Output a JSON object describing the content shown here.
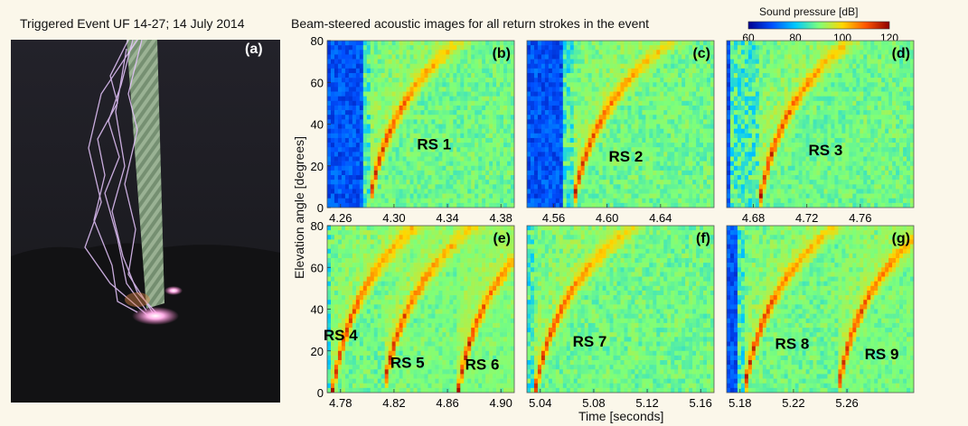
{
  "photo_title": "Triggered Event UF 14-27; 14 July 2014",
  "panels_title": "Beam-steered acoustic images for all return strokes in the event",
  "photo_label": "(a)",
  "colorbar": {
    "title": "Sound pressure [dB]",
    "min": 60,
    "max": 120,
    "ticks": [
      "60",
      "80",
      "100",
      "120"
    ],
    "colors": [
      "#00008f",
      "#0050ff",
      "#00c8ff",
      "#7dff7a",
      "#ffd700",
      "#ff5500",
      "#8f0000"
    ]
  },
  "ylabel": "Elevation angle [degrees]",
  "xlabel": "Time [seconds]",
  "chart_data": [
    {
      "type": "heatmap",
      "label": "(b)",
      "xlim": [
        4.25,
        4.39
      ],
      "ylim": [
        0,
        80
      ],
      "xticks": [
        "4.26",
        "4.30",
        "4.34",
        "4.38"
      ],
      "yticks": [
        "0",
        "20",
        "40",
        "60",
        "80"
      ],
      "annotations": [
        {
          "text": "RS 1",
          "x": 4.33,
          "y": 28
        }
      ],
      "strokes": [
        {
          "t0": 4.281,
          "rate": 0.011
        }
      ],
      "quiet_before": 4.276
    },
    {
      "type": "heatmap",
      "label": "(c)",
      "xlim": [
        4.54,
        4.68
      ],
      "ylim": [
        0,
        80
      ],
      "xticks": [
        "4.56",
        "4.60",
        "4.64"
      ],
      "yticks": [
        "0",
        "20",
        "40",
        "60",
        "80"
      ],
      "annotations": [
        {
          "text": "RS 2",
          "x": 4.614,
          "y": 22
        }
      ],
      "strokes": [
        {
          "t0": 4.574,
          "rate": 0.012
        }
      ],
      "quiet_before": 4.568
    },
    {
      "type": "heatmap",
      "label": "(d)",
      "xlim": [
        4.66,
        4.8
      ],
      "ylim": [
        0,
        80
      ],
      "xticks": [
        "4.68",
        "4.72",
        "4.76"
      ],
      "yticks": [
        "0",
        "20",
        "40",
        "60",
        "80"
      ],
      "annotations": [
        {
          "text": "RS 3",
          "x": 4.734,
          "y": 25
        }
      ],
      "strokes": [
        {
          "t0": 4.684,
          "rate": 0.011
        }
      ],
      "quiet_before": 4.662
    },
    {
      "type": "heatmap",
      "label": "(e)",
      "xlim": [
        4.77,
        4.91
      ],
      "ylim": [
        0,
        80
      ],
      "xticks": [
        "4.78",
        "4.82",
        "4.86",
        "4.90"
      ],
      "yticks": [
        "0",
        "20",
        "40",
        "60",
        "80"
      ],
      "annotations": [
        {
          "text": "RS 4",
          "x": 4.78,
          "y": 25
        },
        {
          "text": "RS 5",
          "x": 4.83,
          "y": 12
        },
        {
          "text": "RS 6",
          "x": 4.886,
          "y": 11
        }
      ],
      "strokes": [
        {
          "t0": 4.774,
          "rate": 0.01
        },
        {
          "t0": 4.812,
          "rate": 0.011
        },
        {
          "t0": 4.868,
          "rate": 0.011
        }
      ],
      "quiet_before": 4.77
    },
    {
      "type": "heatmap",
      "label": "(f)",
      "xlim": [
        5.03,
        5.17
      ],
      "ylim": [
        0,
        80
      ],
      "xticks": [
        "5.04",
        "5.08",
        "5.12",
        "5.16"
      ],
      "yticks": [
        "0",
        "20",
        "40",
        "60",
        "80"
      ],
      "annotations": [
        {
          "text": "RS 7",
          "x": 5.077,
          "y": 22
        }
      ],
      "strokes": [
        {
          "t0": 5.036,
          "rate": 0.012
        }
      ],
      "quiet_before": 5.03
    },
    {
      "type": "heatmap",
      "label": "(g)",
      "xlim": [
        5.17,
        5.31
      ],
      "ylim": [
        0,
        80
      ],
      "xticks": [
        "5.18",
        "5.22",
        "5.26"
      ],
      "yticks": [
        "0",
        "20",
        "40",
        "60",
        "80"
      ],
      "annotations": [
        {
          "text": "RS 8",
          "x": 5.219,
          "y": 21
        },
        {
          "text": "RS 9",
          "x": 5.286,
          "y": 16
        }
      ],
      "strokes": [
        {
          "t0": 5.183,
          "rate": 0.011
        },
        {
          "t0": 5.253,
          "rate": 0.011
        }
      ],
      "quiet_before": 5.178
    }
  ]
}
